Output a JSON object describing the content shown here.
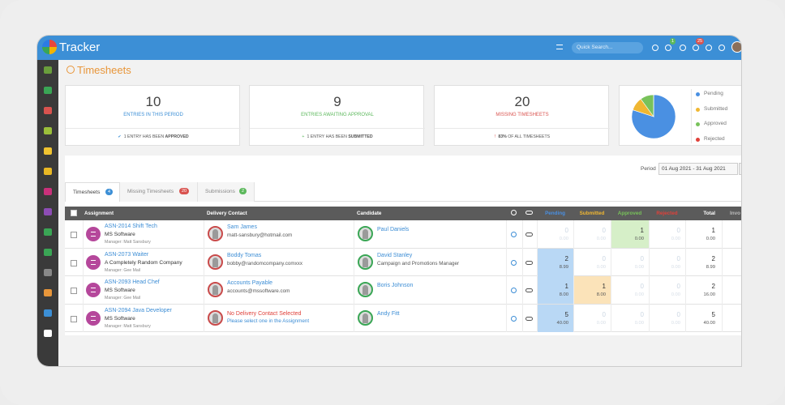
{
  "header": {
    "logo": "Tracker",
    "search_placeholder": "Quick Search...",
    "message_badge": 1,
    "notification_badge": 25
  },
  "page_title": "Timesheets",
  "stats": [
    {
      "value": 10,
      "label": "ENTRIES IN THIS PERIOD",
      "note": "1 ENTRY HAS BEEN",
      "note_strong": "APPROVED"
    },
    {
      "value": 9,
      "label": "ENTRIES AWAITING APPROVAL",
      "note": "1 ENTRY HAS BEEN",
      "note_strong": "SUBMITTED"
    },
    {
      "value": 20,
      "label": "MISSING TIMESHEETS",
      "note": "OF ALL TIMESHEETS",
      "note_strong": "83%"
    }
  ],
  "pie": {
    "slices": [
      {
        "name": "Pending",
        "color": "#4a90e2",
        "value": 8
      },
      {
        "name": "Submitted",
        "color": "#f0b732",
        "value": 1
      },
      {
        "name": "Approved",
        "color": "#78c25a",
        "value": 1
      },
      {
        "name": "Rejected",
        "color": "#e0413a",
        "value": 0
      }
    ]
  },
  "period": {
    "label": "Period",
    "value": "01 Aug 2021 - 31 Aug 2021"
  },
  "tabs": [
    {
      "label": "Timesheets",
      "count": 4
    },
    {
      "label": "Missing Timesheets",
      "count": 20
    },
    {
      "label": "Submissions",
      "count": 2
    }
  ],
  "table": {
    "columns": [
      "Assignment",
      "Delivery Contact",
      "Candidate",
      "Pending",
      "Submitted",
      "Approved",
      "Rejected",
      "Total",
      "Invo"
    ],
    "rows": [
      {
        "assignment": "ASN-2014 Shift Tech",
        "company": "MS Software",
        "manager": "Manager: Matt Sansbury",
        "contact": "Sam James",
        "contact_detail": "matt-sansbury@hotmail.com",
        "candidate": "Paul Daniels",
        "candidate_detail": null,
        "pending": [
          0,
          "0.00"
        ],
        "submitted": [
          0,
          "0.00"
        ],
        "approved": [
          1,
          "0.00"
        ],
        "rejected": [
          0,
          "0.00"
        ],
        "total": [
          1,
          "0.00"
        ]
      },
      {
        "assignment": "ASN-2073 Waiter",
        "company": "A Completely Random Company",
        "manager": "Manager: Gee Mail",
        "contact": "Boddy Tomas",
        "contact_detail": "bobby@randomcompany.comxxx",
        "candidate": "David Stanley",
        "candidate_detail": "Campaign and Promotions Manager",
        "pending": [
          2,
          "8.99"
        ],
        "submitted": [
          0,
          "0.00"
        ],
        "approved": [
          0,
          "0.00"
        ],
        "rejected": [
          0,
          "0.00"
        ],
        "total": [
          2,
          "8.99"
        ]
      },
      {
        "assignment": "ASN-2093 Head Chef",
        "company": "MS Software",
        "manager": "Manager: Gee Mail",
        "contact": "Accounts Payable",
        "contact_detail": "accounts@mssoftware.com",
        "candidate": "Boris Johnson",
        "candidate_detail": null,
        "pending": [
          1,
          "8.00"
        ],
        "submitted": [
          1,
          "8.00"
        ],
        "approved": [
          0,
          "0.00"
        ],
        "rejected": [
          0,
          "0.00"
        ],
        "total": [
          2,
          "16.00"
        ]
      },
      {
        "assignment": "ASN-2094 Java Developer",
        "company": "MS Software",
        "manager": "Manager: Matt Sansbury",
        "contact": "No Delivery Contact Selected",
        "contact_detail": "Please select one in the Assignment",
        "candidate": "Andy Fitt",
        "candidate_detail": null,
        "pending": [
          5,
          "40.00"
        ],
        "submitted": [
          0,
          "0.00"
        ],
        "approved": [
          0,
          "0.00"
        ],
        "rejected": [
          0,
          "0.00"
        ],
        "total": [
          5,
          "40.00"
        ]
      }
    ]
  }
}
